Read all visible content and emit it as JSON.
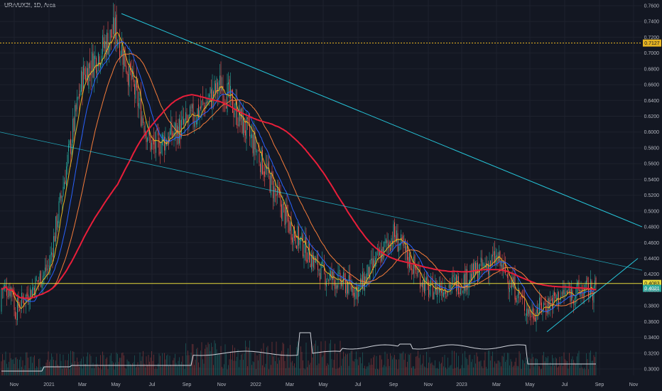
{
  "symbol_line": "URA/UX2!, 1D, Arca",
  "colors": {
    "background": "#131722",
    "grid": "#1e222d",
    "up": "#26a69a",
    "down": "#ef5350",
    "ma_fast": "#e6b422",
    "ma_mid": "#2962ff",
    "ma_slow": "#f57c3a",
    "ma_long": "#e91e3a",
    "trendline": "#26c6da",
    "hline_top": "#e6b422",
    "hline_bottom": "#e6d83a",
    "ratio_line": "#d1d4dc"
  },
  "chart_data": {
    "type": "candlestick",
    "x_ticks": [
      "Nov",
      "2021",
      "Mar",
      "May",
      "Jul",
      "Sep",
      "Nov",
      "2022",
      "Mar",
      "May",
      "Jul",
      "Sep",
      "Nov",
      "2023",
      "Mar",
      "May",
      "Jul",
      "Sep",
      "Nov"
    ],
    "y_ticks": [
      "0.7600",
      "0.7400",
      "0.7200",
      "0.7000",
      "0.6800",
      "0.6600",
      "0.6400",
      "0.6200",
      "0.6000",
      "0.5800",
      "0.5600",
      "0.5400",
      "0.5200",
      "0.5000",
      "0.4800",
      "0.4600",
      "0.4400",
      "0.4200",
      "0.4000",
      "0.3800",
      "0.3600",
      "0.3400",
      "0.3200",
      "0.3000"
    ],
    "ylim": [
      0.296,
      0.762
    ],
    "horizontal_lines": [
      {
        "value": 0.7127,
        "label": "0.7127",
        "style": "dashed"
      },
      {
        "value": 0.4083,
        "label": "0.4083",
        "style": "solid"
      }
    ],
    "last_price": {
      "value": 0.4021,
      "label": "0.4021"
    },
    "price_path": [
      {
        "x": "Nov",
        "y": 0.372
      },
      {
        "x": "2021",
        "y": 0.43
      },
      {
        "x": "Mar",
        "y": 0.67
      },
      {
        "x": "May",
        "y": 0.73
      },
      {
        "x": "Jul",
        "y": 0.58
      },
      {
        "x": "Sep",
        "y": 0.61
      },
      {
        "x": "Nov",
        "y": 0.66
      },
      {
        "x": "2022",
        "y": 0.58
      },
      {
        "x": "Mar",
        "y": 0.48
      },
      {
        "x": "May",
        "y": 0.42
      },
      {
        "x": "Jul",
        "y": 0.4
      },
      {
        "x": "Sep",
        "y": 0.47
      },
      {
        "x": "Nov",
        "y": 0.4
      },
      {
        "x": "2023",
        "y": 0.41
      },
      {
        "x": "Mar",
        "y": 0.44
      },
      {
        "x": "May",
        "y": 0.37
      },
      {
        "x": "Jul",
        "y": 0.395
      },
      {
        "x": "Sep",
        "y": 0.402
      }
    ],
    "trendlines": [
      "descending from May 2021 high",
      "descending long-term line",
      "ascending support from May 2023"
    ]
  }
}
